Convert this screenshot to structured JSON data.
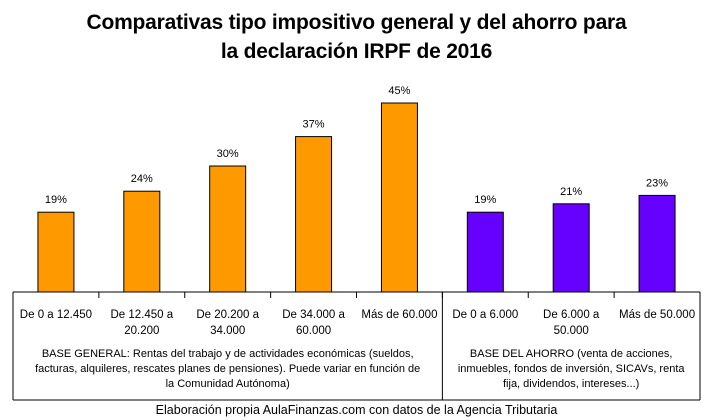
{
  "chart_data": {
    "type": "bar",
    "title_lines": [
      "Comparativas tipo impositivo general y del ahorro para",
      "la declaración IRPF de 2016"
    ],
    "categories": [
      [
        "De 0 a 12.450"
      ],
      [
        "De 12.450 a",
        "20.200"
      ],
      [
        "De 20.200 a",
        "34.000"
      ],
      [
        "De 34.000 a",
        "60.000"
      ],
      [
        "Más de 60.000"
      ],
      [
        "De 0 a 6.000"
      ],
      [
        "De 6.000 a",
        "50.000"
      ],
      [
        "Más de 50.000"
      ]
    ],
    "value_labels": [
      "19%",
      "24%",
      "30%",
      "37%",
      "45%",
      "19%",
      "21%",
      "23%"
    ],
    "series": [
      {
        "values": [
          19,
          24,
          30,
          37,
          45,
          null,
          null,
          null
        ],
        "color": "#ff9900"
      },
      {
        "values": [
          null,
          null,
          null,
          null,
          null,
          19,
          21,
          23
        ],
        "color": "#6600ff"
      }
    ],
    "groups": [
      {
        "category_count": 5,
        "note_lines": [
          "BASE GENERAL:  Rentas del trabajo  y de actividades económicas (sueldos,",
          "facturas, alquileres, rescates planes de pensiones). Puede variar  en función de",
          "la Comunidad  Autónoma)"
        ]
      },
      {
        "category_count": 3,
        "note_lines": [
          "BASE DEL AHORRO (venta de acciones,",
          "inmuebles, fondos de inversión, SICAVs, renta",
          "fija, dividendos, intereses...)"
        ]
      }
    ],
    "ylim": [
      0,
      50
    ],
    "grid": false,
    "legend": "none"
  },
  "footer": "Elaboración propia AulaFinanzas.com con datos de la Agencia Tributaria"
}
